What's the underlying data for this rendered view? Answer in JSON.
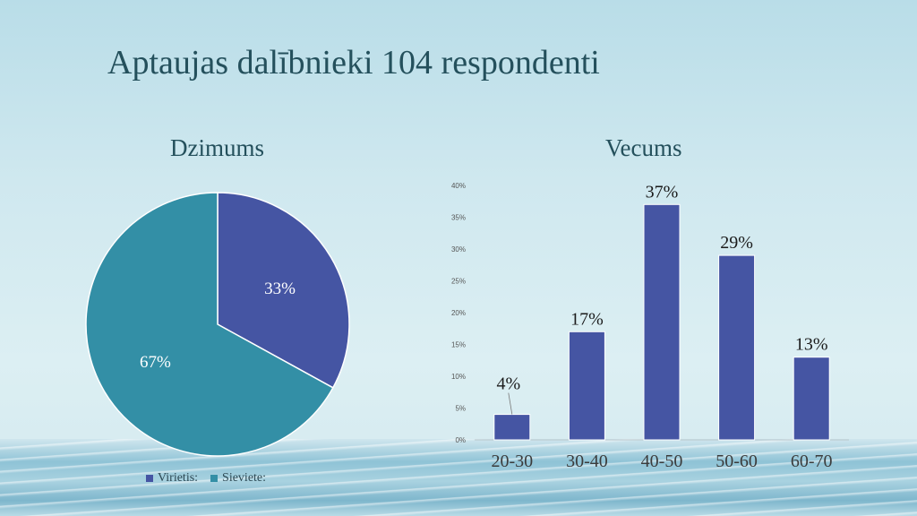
{
  "slide": {
    "title": "Aptaujas dalībnieki 104 respondenti"
  },
  "colors": {
    "male": "#4555a3",
    "female": "#338fa6",
    "bar": "#4555a3",
    "text": "#24505c"
  },
  "chart_data": [
    {
      "type": "pie",
      "title": "Dzimums",
      "categories": [
        "Virietis:",
        "Sieviete:"
      ],
      "values": [
        33,
        67
      ],
      "labels": [
        "33%",
        "67%"
      ],
      "legend": "bottom"
    },
    {
      "type": "bar",
      "title": "Vecums",
      "categories": [
        "20-30",
        "30-40",
        "40-50",
        "50-60",
        "60-70"
      ],
      "values": [
        4,
        17,
        37,
        29,
        13
      ],
      "data_labels": [
        "4%",
        "17%",
        "37%",
        "29%",
        "13%"
      ],
      "ylim": [
        0,
        40
      ],
      "yticks": [
        "0%",
        "5%",
        "10%",
        "15%",
        "20%",
        "25%",
        "30%",
        "35%",
        "40%"
      ],
      "grid": false
    }
  ]
}
